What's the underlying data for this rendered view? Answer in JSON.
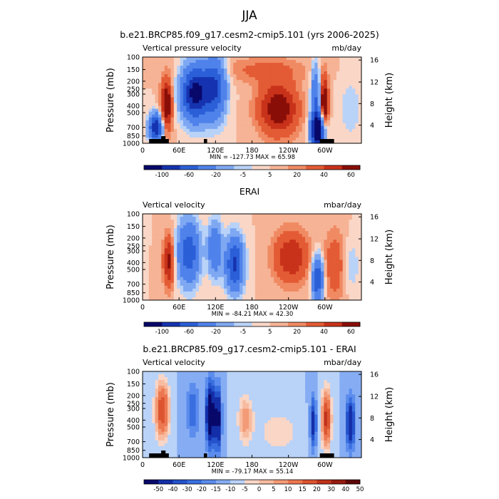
{
  "page_title": "JJA",
  "colors": {
    "ramp_11": [
      "#08086b",
      "#1533b0",
      "#2b5fd8",
      "#4f82ea",
      "#7fa8f2",
      "#b9d2f8",
      "#f9d6c6",
      "#f6b395",
      "#f08a63",
      "#e35b34",
      "#c8321a",
      "#8a0e08"
    ],
    "ramp_14": [
      "#08086b",
      "#132ea8",
      "#2453cc",
      "#3a6fe0",
      "#5c8ded",
      "#86adf3",
      "#b9d2f8",
      "#f9d6c6",
      "#f7bba0",
      "#f39a76",
      "#ec7750",
      "#dc5430",
      "#c0321b",
      "#961a0e",
      "#5e0606"
    ],
    "ground": "#000000"
  },
  "chart_data": [
    {
      "type": "heatmap",
      "title": "b.e21.BRCP85.f09_g17.cesm2-cmip5.101 (yrs 2006-2025)",
      "left_label": "Vertical pressure velocity",
      "units": "mb/day",
      "ylabel": "Pressure (mb)",
      "ylabel_right": "Height (km)",
      "xticks": [
        "0",
        "60E",
        "120E",
        "180",
        "120W",
        "60W"
      ],
      "yticks": [
        "100",
        "150",
        "200",
        "250",
        "300",
        "400",
        "500",
        "700",
        "850",
        "1000"
      ],
      "yticks_right": [
        "16",
        "12",
        "8",
        "4"
      ],
      "stats": "MIN = -127.73   MAX =   65.98",
      "min": -127.73,
      "max": 65.98,
      "colorbar": {
        "levels": [
          "-100",
          "-60",
          "-20",
          "-5",
          "5",
          "20",
          "40",
          "60"
        ],
        "all_levels": [
          -120,
          -100,
          -80,
          -60,
          -40,
          -20,
          -10,
          -5,
          0,
          5,
          10,
          20,
          30,
          40,
          50,
          60,
          70
        ]
      },
      "ground_mask": true
    },
    {
      "type": "heatmap",
      "title": "ERAI",
      "left_label": "Vertical velocity",
      "units": "mbar/day",
      "ylabel": "Pressure (mb)",
      "ylabel_right": "Height (km)",
      "xticks": [
        "0",
        "60E",
        "120E",
        "180",
        "120W",
        "60W"
      ],
      "yticks": [
        "100",
        "150",
        "200",
        "250",
        "300",
        "400",
        "500",
        "700",
        "850",
        "1000"
      ],
      "yticks_right": [
        "16",
        "12",
        "8",
        "4"
      ],
      "stats": "MIN = -84.21   MAX =   42.30",
      "min": -84.21,
      "max": 42.3,
      "colorbar": {
        "levels": [
          "-100",
          "-60",
          "-20",
          "-5",
          "5",
          "20",
          "40",
          "60"
        ],
        "all_levels": [
          -120,
          -100,
          -80,
          -60,
          -40,
          -20,
          -10,
          -5,
          0,
          5,
          10,
          20,
          30,
          40,
          50,
          60,
          70
        ]
      },
      "ground_mask": false
    },
    {
      "type": "heatmap",
      "title": "b.e21.BRCP85.f09_g17.cesm2-cmip5.101 - ERAI",
      "left_label": "Vertical velocity",
      "units": "mbar/day",
      "ylabel": "Pressure (mb)",
      "ylabel_right": "Height (km)",
      "xticks": [
        "0",
        "60E",
        "120E",
        "180",
        "120W",
        "60W"
      ],
      "yticks": [
        "100",
        "150",
        "200",
        "250",
        "300",
        "400",
        "500",
        "700",
        "850",
        "1000"
      ],
      "yticks_right": [
        "16",
        "12",
        "8",
        "4"
      ],
      "stats": "MIN = -79.17   MAX =   55.14",
      "min": -79.17,
      "max": 55.14,
      "colorbar": {
        "levels": [
          "-50",
          "-40",
          "-30",
          "-20",
          "-15",
          "-10",
          "-5",
          "0",
          "5",
          "10",
          "15",
          "20",
          "30",
          "40",
          "50"
        ],
        "all_levels": [
          -50,
          -40,
          -30,
          -20,
          -15,
          -10,
          -5,
          0,
          5,
          10,
          15,
          20,
          30,
          40,
          50
        ]
      },
      "ground_mask": true
    }
  ]
}
